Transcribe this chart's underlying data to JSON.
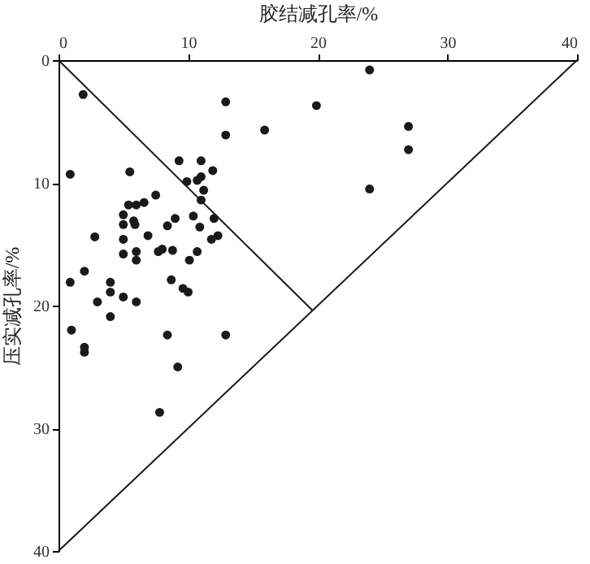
{
  "chart_data": {
    "type": "scatter",
    "xlabel": "胶结减孔率/%",
    "ylabel": "压实减孔率/%",
    "xlim": [
      0,
      40
    ],
    "xticks": [
      0,
      10,
      20,
      30,
      40
    ],
    "ylim": [
      40,
      0
    ],
    "yticks": [
      0,
      10,
      20,
      30,
      40
    ],
    "grid": false,
    "marker": "circle",
    "series": [
      {
        "color": "#1a1a1a",
        "x": [
          24,
          1.9,
          12.9,
          19.9,
          15.9,
          12.9,
          27,
          27,
          9.3,
          11,
          11.9,
          0.9,
          5.5,
          9.9,
          10.7,
          11,
          24,
          7.5,
          11.2,
          11,
          5.4,
          6,
          6.6,
          5,
          5.8,
          5.9,
          5,
          9,
          10.4,
          12,
          8.4,
          10.9,
          2.8,
          6.9,
          5,
          12.3,
          11.8,
          8,
          7.7,
          8.8,
          10.7,
          5,
          6,
          6,
          10.1,
          0.9,
          2,
          4,
          8.7,
          9.6,
          10,
          4,
          3,
          5,
          6,
          4,
          1,
          8.4,
          12.9,
          2,
          2,
          9.2,
          7.8
        ],
        "values": [
          0.8,
          2.8,
          3.4,
          3.7,
          5.7,
          6.1,
          5.4,
          7.3,
          8.2,
          8.2,
          9,
          9.3,
          9.1,
          9.9,
          9.8,
          9.5,
          10.5,
          11,
          10.6,
          11.4,
          11.8,
          11.8,
          11.6,
          12.6,
          13.1,
          13.4,
          13.4,
          12.9,
          12.7,
          12.9,
          13.5,
          13.6,
          14.4,
          14.3,
          14.6,
          14.3,
          14.6,
          15.4,
          15.6,
          15.5,
          15.6,
          15.8,
          15.6,
          16.3,
          16.3,
          18.1,
          17.2,
          18.1,
          17.9,
          18.6,
          18.9,
          18.9,
          19.7,
          19.3,
          19.7,
          20.9,
          22,
          22.4,
          22.4,
          23.4,
          23.8,
          25,
          28.7
        ]
      },
      {
        "type": "line",
        "marker": "none",
        "color": "#1a1a1a",
        "x": [
          0,
          19.6
        ],
        "values": [
          0,
          20.4
        ]
      },
      {
        "type": "line",
        "marker": "none",
        "color": "#1a1a1a",
        "x": [
          40,
          0
        ],
        "values": [
          0,
          40
        ]
      }
    ]
  }
}
